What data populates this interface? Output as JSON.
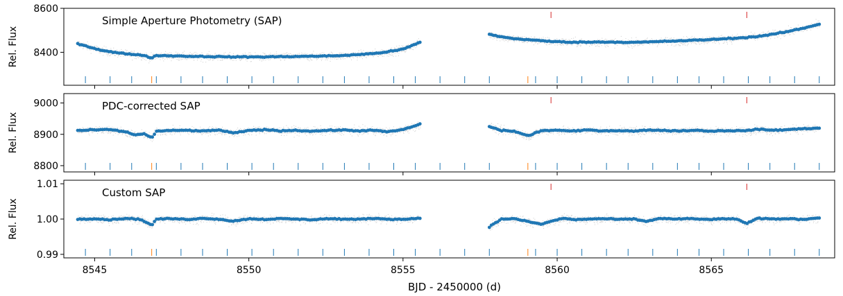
{
  "chart_data": {
    "type": "scatter",
    "xlabel": "BJD - 2450000 (d)",
    "xlim": [
      8544.0,
      8569.0
    ],
    "xticks": [
      8545,
      8550,
      8555,
      8560,
      8565
    ],
    "xtick_labels": [
      "8545",
      "8550",
      "8555",
      "8560",
      "8565"
    ],
    "colors": {
      "binned": "#1f77b4",
      "raw": "#b4b4b4",
      "marker_blue": "#1f77b4",
      "marker_orange": "#ff7f0e",
      "marker_red": "#d62728"
    },
    "blue_marker_times": [
      8544.7,
      8545.5,
      8546.2,
      8547.0,
      8547.8,
      8548.5,
      8549.3,
      8550.1,
      8550.8,
      8551.6,
      8552.4,
      8553.1,
      8553.9,
      8554.7,
      8555.4,
      8556.2,
      8557.0,
      8557.8,
      8559.3,
      8560.0,
      8560.8,
      8561.6,
      8562.3,
      8563.1,
      8563.9,
      8564.6,
      8565.4,
      8566.2,
      8566.9,
      8567.7,
      8568.5
    ],
    "orange_marker_times": [
      8546.85,
      8559.05
    ],
    "red_marker_times": [
      8559.8,
      8566.15
    ],
    "segments": [
      [
        8544.45,
        8555.55
      ],
      [
        8557.8,
        8568.5
      ]
    ],
    "panels": [
      {
        "title": "Simple Aperture Photometry (SAP)",
        "ylabel": "Rel. Flux",
        "ylim": [
          8250,
          8600
        ],
        "yticks": [
          8400,
          8600
        ],
        "ytick_labels": [
          "8400",
          "8600"
        ],
        "binned": [
          {
            "x": 8544.45,
            "y": 8440
          },
          {
            "x": 8544.8,
            "y": 8425
          },
          {
            "x": 8545.2,
            "y": 8410
          },
          {
            "x": 8545.6,
            "y": 8400
          },
          {
            "x": 8546.0,
            "y": 8393
          },
          {
            "x": 8546.5,
            "y": 8388
          },
          {
            "x": 8546.85,
            "y": 8375
          },
          {
            "x": 8547.0,
            "y": 8385
          },
          {
            "x": 8547.5,
            "y": 8384
          },
          {
            "x": 8548.0,
            "y": 8382
          },
          {
            "x": 8548.5,
            "y": 8381
          },
          {
            "x": 8549.0,
            "y": 8380
          },
          {
            "x": 8549.5,
            "y": 8379
          },
          {
            "x": 8550.0,
            "y": 8379
          },
          {
            "x": 8550.5,
            "y": 8379
          },
          {
            "x": 8551.0,
            "y": 8380
          },
          {
            "x": 8551.5,
            "y": 8381
          },
          {
            "x": 8552.0,
            "y": 8382
          },
          {
            "x": 8552.5,
            "y": 8383
          },
          {
            "x": 8553.0,
            "y": 8385
          },
          {
            "x": 8553.5,
            "y": 8389
          },
          {
            "x": 8554.0,
            "y": 8394
          },
          {
            "x": 8554.5,
            "y": 8402
          },
          {
            "x": 8555.0,
            "y": 8414
          },
          {
            "x": 8555.55,
            "y": 8445
          },
          {
            "x": 8557.8,
            "y": 8482
          },
          {
            "x": 8558.2,
            "y": 8470
          },
          {
            "x": 8558.6,
            "y": 8462
          },
          {
            "x": 8559.0,
            "y": 8458
          },
          {
            "x": 8559.5,
            "y": 8452
          },
          {
            "x": 8560.0,
            "y": 8448
          },
          {
            "x": 8560.5,
            "y": 8446
          },
          {
            "x": 8561.0,
            "y": 8446
          },
          {
            "x": 8561.5,
            "y": 8447
          },
          {
            "x": 8562.0,
            "y": 8446
          },
          {
            "x": 8562.5,
            "y": 8445
          },
          {
            "x": 8563.0,
            "y": 8447
          },
          {
            "x": 8563.5,
            "y": 8450
          },
          {
            "x": 8564.0,
            "y": 8452
          },
          {
            "x": 8564.5,
            "y": 8455
          },
          {
            "x": 8565.0,
            "y": 8458
          },
          {
            "x": 8565.5,
            "y": 8462
          },
          {
            "x": 8566.0,
            "y": 8466
          },
          {
            "x": 8566.5,
            "y": 8472
          },
          {
            "x": 8567.0,
            "y": 8482
          },
          {
            "x": 8567.5,
            "y": 8495
          },
          {
            "x": 8568.0,
            "y": 8510
          },
          {
            "x": 8568.5,
            "y": 8528
          }
        ]
      },
      {
        "title": "PDC-corrected SAP",
        "ylabel": "Rel. Flux",
        "ylim": [
          8780,
          9030
        ],
        "yticks": [
          8800,
          8900,
          9000
        ],
        "ytick_labels": [
          "8800",
          "8900",
          "9000"
        ],
        "binned": [
          {
            "x": 8544.45,
            "y": 8912
          },
          {
            "x": 8545.0,
            "y": 8914
          },
          {
            "x": 8545.5,
            "y": 8915
          },
          {
            "x": 8546.0,
            "y": 8908
          },
          {
            "x": 8546.3,
            "y": 8898
          },
          {
            "x": 8546.6,
            "y": 8902
          },
          {
            "x": 8546.85,
            "y": 8888
          },
          {
            "x": 8547.0,
            "y": 8910
          },
          {
            "x": 8547.5,
            "y": 8912
          },
          {
            "x": 8548.0,
            "y": 8913
          },
          {
            "x": 8548.5,
            "y": 8910
          },
          {
            "x": 8549.0,
            "y": 8914
          },
          {
            "x": 8549.5,
            "y": 8904
          },
          {
            "x": 8550.0,
            "y": 8912
          },
          {
            "x": 8550.5,
            "y": 8915
          },
          {
            "x": 8551.0,
            "y": 8911
          },
          {
            "x": 8551.5,
            "y": 8913
          },
          {
            "x": 8552.0,
            "y": 8910
          },
          {
            "x": 8552.5,
            "y": 8912
          },
          {
            "x": 8553.0,
            "y": 8914
          },
          {
            "x": 8553.5,
            "y": 8911
          },
          {
            "x": 8554.0,
            "y": 8913
          },
          {
            "x": 8554.5,
            "y": 8908
          },
          {
            "x": 8555.0,
            "y": 8915
          },
          {
            "x": 8555.55,
            "y": 8932
          },
          {
            "x": 8557.8,
            "y": 8925
          },
          {
            "x": 8558.2,
            "y": 8912
          },
          {
            "x": 8558.6,
            "y": 8910
          },
          {
            "x": 8559.05,
            "y": 8895
          },
          {
            "x": 8559.5,
            "y": 8912
          },
          {
            "x": 8560.0,
            "y": 8913
          },
          {
            "x": 8560.5,
            "y": 8910
          },
          {
            "x": 8561.0,
            "y": 8914
          },
          {
            "x": 8561.5,
            "y": 8911
          },
          {
            "x": 8562.0,
            "y": 8912
          },
          {
            "x": 8562.5,
            "y": 8910
          },
          {
            "x": 8563.0,
            "y": 8914
          },
          {
            "x": 8563.5,
            "y": 8912
          },
          {
            "x": 8564.0,
            "y": 8911
          },
          {
            "x": 8564.5,
            "y": 8913
          },
          {
            "x": 8565.0,
            "y": 8910
          },
          {
            "x": 8565.5,
            "y": 8912
          },
          {
            "x": 8566.0,
            "y": 8911
          },
          {
            "x": 8566.5,
            "y": 8916
          },
          {
            "x": 8567.0,
            "y": 8913
          },
          {
            "x": 8567.5,
            "y": 8915
          },
          {
            "x": 8568.0,
            "y": 8918
          },
          {
            "x": 8568.5,
            "y": 8920
          }
        ]
      },
      {
        "title": "Custom SAP",
        "ylabel": "Rel. Flux",
        "ylim": [
          0.989,
          1.011
        ],
        "yticks": [
          0.99,
          1.0,
          1.01
        ],
        "ytick_labels": [
          "0.99",
          "1.00",
          "1.01"
        ],
        "binned": [
          {
            "x": 8544.45,
            "y": 1.0
          },
          {
            "x": 8545.0,
            "y": 1.0001
          },
          {
            "x": 8545.5,
            "y": 0.9998
          },
          {
            "x": 8546.0,
            "y": 1.0002
          },
          {
            "x": 8546.5,
            "y": 0.9999
          },
          {
            "x": 8546.85,
            "y": 0.9982
          },
          {
            "x": 8547.0,
            "y": 1.0
          },
          {
            "x": 8547.5,
            "y": 1.0001
          },
          {
            "x": 8548.0,
            "y": 0.9999
          },
          {
            "x": 8548.5,
            "y": 1.0002
          },
          {
            "x": 8549.0,
            "y": 1.0
          },
          {
            "x": 8549.5,
            "y": 0.9994
          },
          {
            "x": 8550.0,
            "y": 1.0001
          },
          {
            "x": 8550.5,
            "y": 0.9999
          },
          {
            "x": 8551.0,
            "y": 1.0001
          },
          {
            "x": 8551.5,
            "y": 1.0
          },
          {
            "x": 8552.0,
            "y": 0.9998
          },
          {
            "x": 8552.5,
            "y": 1.0001
          },
          {
            "x": 8553.0,
            "y": 1.0
          },
          {
            "x": 8553.5,
            "y": 0.9999
          },
          {
            "x": 8554.0,
            "y": 1.0002
          },
          {
            "x": 8554.5,
            "y": 1.0
          },
          {
            "x": 8555.0,
            "y": 0.9999
          },
          {
            "x": 8555.55,
            "y": 1.0003
          },
          {
            "x": 8557.8,
            "y": 0.9978
          },
          {
            "x": 8558.2,
            "y": 1.0
          },
          {
            "x": 8558.6,
            "y": 1.0001
          },
          {
            "x": 8559.05,
            "y": 0.9993
          },
          {
            "x": 8559.5,
            "y": 0.9985
          },
          {
            "x": 8559.8,
            "y": 0.9994
          },
          {
            "x": 8560.2,
            "y": 1.0002
          },
          {
            "x": 8560.6,
            "y": 0.9998
          },
          {
            "x": 8561.0,
            "y": 1.0
          },
          {
            "x": 8561.5,
            "y": 1.0001
          },
          {
            "x": 8562.0,
            "y": 0.9999
          },
          {
            "x": 8562.5,
            "y": 1.0
          },
          {
            "x": 8562.9,
            "y": 0.9993
          },
          {
            "x": 8563.3,
            "y": 1.0002
          },
          {
            "x": 8563.8,
            "y": 1.0
          },
          {
            "x": 8564.3,
            "y": 1.0001
          },
          {
            "x": 8564.8,
            "y": 0.9999
          },
          {
            "x": 8565.3,
            "y": 1.0
          },
          {
            "x": 8565.8,
            "y": 1.0001
          },
          {
            "x": 8566.15,
            "y": 0.9987
          },
          {
            "x": 8566.5,
            "y": 1.0002
          },
          {
            "x": 8567.0,
            "y": 1.0
          },
          {
            "x": 8567.5,
            "y": 1.0001
          },
          {
            "x": 8568.0,
            "y": 0.9999
          },
          {
            "x": 8568.5,
            "y": 1.0004
          }
        ]
      }
    ]
  }
}
